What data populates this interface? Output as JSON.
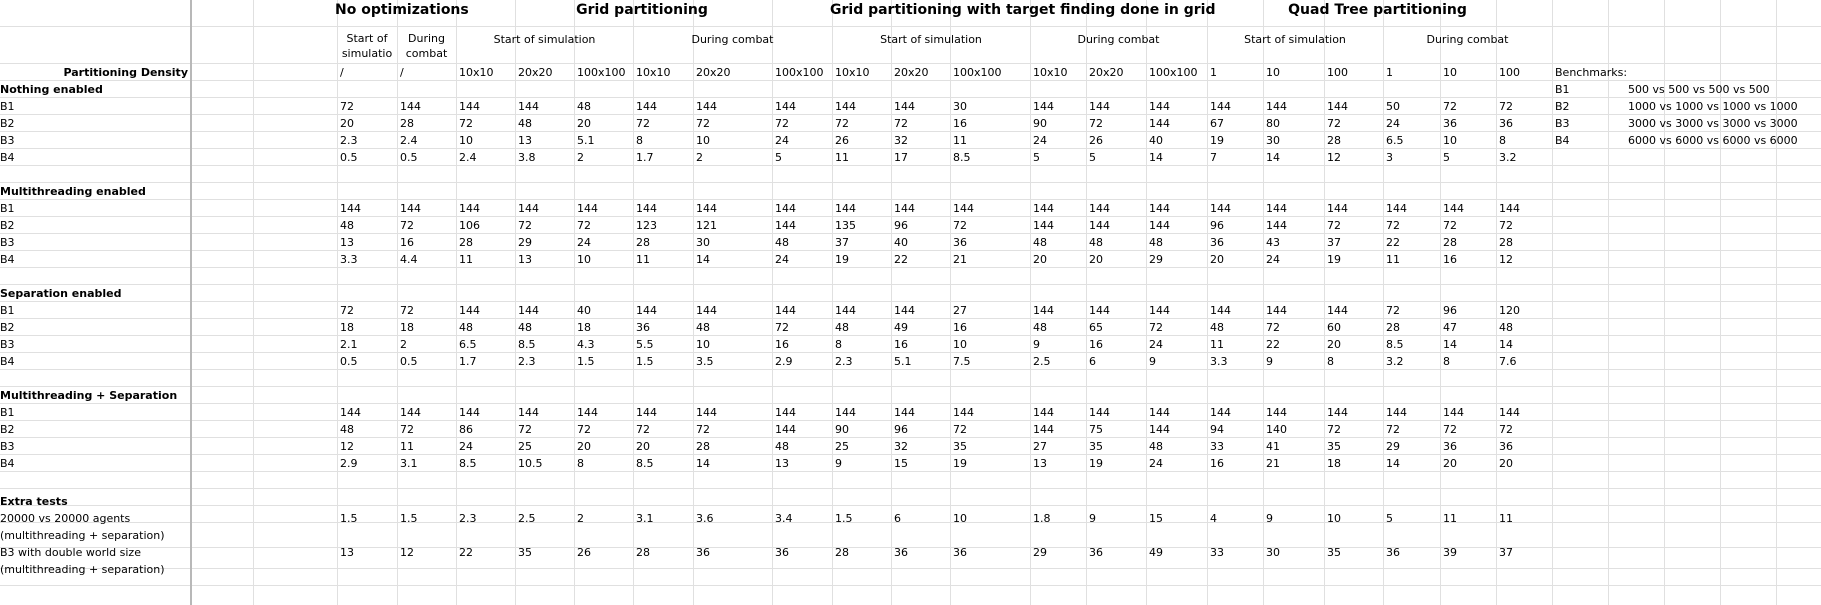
{
  "groups": [
    {
      "title": "No optimizations"
    },
    {
      "title": "Grid partitioning"
    },
    {
      "title": "Grid partitioning with target finding done in grid"
    },
    {
      "title": "Quad Tree partitioning"
    }
  ],
  "phases": {
    "start": "Start of simulation",
    "during": "During combat",
    "no_opt_start": "Start of simulatio",
    "no_opt_during": "During combat"
  },
  "density_label": "Partitioning Density",
  "densities": [
    "/",
    "/",
    "10x10",
    "20x20",
    "100x100",
    "10x10",
    "20x20",
    "100x100",
    "10x10",
    "20x20",
    "100x100",
    "10x10",
    "20x20",
    "100x100",
    "1",
    "10",
    "100",
    "1",
    "10",
    "100"
  ],
  "sections": [
    {
      "title": "Nothing enabled",
      "rows": [
        {
          "label": "B1",
          "values": [
            "72",
            "144",
            "144",
            "144",
            "48",
            "144",
            "144",
            "144",
            "144",
            "144",
            "30",
            "144",
            "144",
            "144",
            "144",
            "144",
            "144",
            "50",
            "72",
            "72"
          ]
        },
        {
          "label": "B2",
          "values": [
            "20",
            "28",
            "72",
            "48",
            "20",
            "72",
            "72",
            "72",
            "72",
            "72",
            "16",
            "90",
            "72",
            "144",
            "67",
            "80",
            "72",
            "24",
            "36",
            "36"
          ]
        },
        {
          "label": "B3",
          "values": [
            "2.3",
            "2.4",
            "10",
            "13",
            "5.1",
            "8",
            "10",
            "24",
            "26",
            "32",
            "11",
            "24",
            "26",
            "40",
            "19",
            "30",
            "28",
            "6.5",
            "10",
            "8"
          ]
        },
        {
          "label": "B4",
          "values": [
            "0.5",
            "0.5",
            "2.4",
            "3.8",
            "2",
            "1.7",
            "2",
            "5",
            "11",
            "17",
            "8.5",
            "5",
            "5",
            "14",
            "7",
            "14",
            "12",
            "3",
            "5",
            "3.2"
          ]
        }
      ]
    },
    {
      "title": "Multithreading enabled",
      "rows": [
        {
          "label": "B1",
          "values": [
            "144",
            "144",
            "144",
            "144",
            "144",
            "144",
            "144",
            "144",
            "144",
            "144",
            "144",
            "144",
            "144",
            "144",
            "144",
            "144",
            "144",
            "144",
            "144",
            "144"
          ]
        },
        {
          "label": "B2",
          "values": [
            "48",
            "72",
            "106",
            "72",
            "72",
            "123",
            "121",
            "144",
            "135",
            "96",
            "72",
            "144",
            "144",
            "144",
            "96",
            "144",
            "72",
            "72",
            "72",
            "72"
          ]
        },
        {
          "label": "B3",
          "values": [
            "13",
            "16",
            "28",
            "29",
            "24",
            "28",
            "30",
            "48",
            "37",
            "40",
            "36",
            "48",
            "48",
            "48",
            "36",
            "43",
            "37",
            "22",
            "28",
            "28"
          ]
        },
        {
          "label": "B4",
          "values": [
            "3.3",
            "4.4",
            "11",
            "13",
            "10",
            "11",
            "14",
            "24",
            "19",
            "22",
            "21",
            "20",
            "20",
            "29",
            "20",
            "24",
            "19",
            "11",
            "16",
            "12"
          ]
        }
      ]
    },
    {
      "title": "Separation enabled",
      "rows": [
        {
          "label": "B1",
          "values": [
            "72",
            "72",
            "144",
            "144",
            "40",
            "144",
            "144",
            "144",
            "144",
            "144",
            "27",
            "144",
            "144",
            "144",
            "144",
            "144",
            "144",
            "72",
            "96",
            "120"
          ]
        },
        {
          "label": "B2",
          "values": [
            "18",
            "18",
            "48",
            "48",
            "18",
            "36",
            "48",
            "72",
            "48",
            "49",
            "16",
            "48",
            "65",
            "72",
            "48",
            "72",
            "60",
            "28",
            "47",
            "48"
          ]
        },
        {
          "label": "B3",
          "values": [
            "2.1",
            "2",
            "6.5",
            "8.5",
            "4.3",
            "5.5",
            "10",
            "16",
            "8",
            "16",
            "10",
            "9",
            "16",
            "24",
            "11",
            "22",
            "20",
            "8.5",
            "14",
            "14"
          ]
        },
        {
          "label": "B4",
          "values": [
            "0.5",
            "0.5",
            "1.7",
            "2.3",
            "1.5",
            "1.5",
            "3.5",
            "2.9",
            "2.3",
            "5.1",
            "7.5",
            "2.5",
            "6",
            "9",
            "3.3",
            "9",
            "8",
            "3.2",
            "8",
            "7.6"
          ]
        }
      ]
    },
    {
      "title": "Multithreading + Separation",
      "rows": [
        {
          "label": "B1",
          "values": [
            "144",
            "144",
            "144",
            "144",
            "144",
            "144",
            "144",
            "144",
            "144",
            "144",
            "144",
            "144",
            "144",
            "144",
            "144",
            "144",
            "144",
            "144",
            "144",
            "144"
          ]
        },
        {
          "label": "B2",
          "values": [
            "48",
            "72",
            "86",
            "72",
            "72",
            "72",
            "72",
            "144",
            "90",
            "96",
            "72",
            "144",
            "75",
            "144",
            "94",
            "140",
            "72",
            "72",
            "72",
            "72"
          ]
        },
        {
          "label": "B3",
          "values": [
            "12",
            "11",
            "24",
            "25",
            "20",
            "20",
            "28",
            "48",
            "25",
            "32",
            "35",
            "27",
            "35",
            "48",
            "33",
            "41",
            "35",
            "29",
            "36",
            "36"
          ]
        },
        {
          "label": "B4",
          "values": [
            "2.9",
            "3.1",
            "8.5",
            "10.5",
            "8",
            "8.5",
            "14",
            "13",
            "9",
            "15",
            "19",
            "13",
            "19",
            "24",
            "16",
            "21",
            "18",
            "14",
            "20",
            "20"
          ]
        }
      ]
    }
  ],
  "extra": {
    "title": "Extra tests",
    "rows": [
      {
        "label1": "20000 vs 20000 agents",
        "label2": "(multithreading + separation)",
        "values": [
          "1.5",
          "1.5",
          "2.3",
          "2.5",
          "2",
          "3.1",
          "3.6",
          "3.4",
          "1.5",
          "6",
          "10",
          "1.8",
          "9",
          "15",
          "4",
          "9",
          "10",
          "5",
          "11",
          "11"
        ]
      },
      {
        "label1": "B3 with double world size",
        "label2": "(multithreading + separation)",
        "values": [
          "13",
          "12",
          "22",
          "35",
          "26",
          "28",
          "36",
          "36",
          "28",
          "36",
          "36",
          "29",
          "36",
          "49",
          "33",
          "30",
          "35",
          "36",
          "39",
          "37"
        ]
      }
    ]
  },
  "benchmarks": {
    "title": "Benchmarks:",
    "items": [
      {
        "key": "B1",
        "value": "500 vs 500 vs 500 vs 500"
      },
      {
        "key": "B2",
        "value": "1000 vs 1000 vs 1000 vs 1000"
      },
      {
        "key": "B3",
        "value": "3000 vs 3000 vs 3000 vs 3000"
      },
      {
        "key": "B4",
        "value": "6000 vs 6000 vs 6000 vs 6000"
      }
    ]
  }
}
